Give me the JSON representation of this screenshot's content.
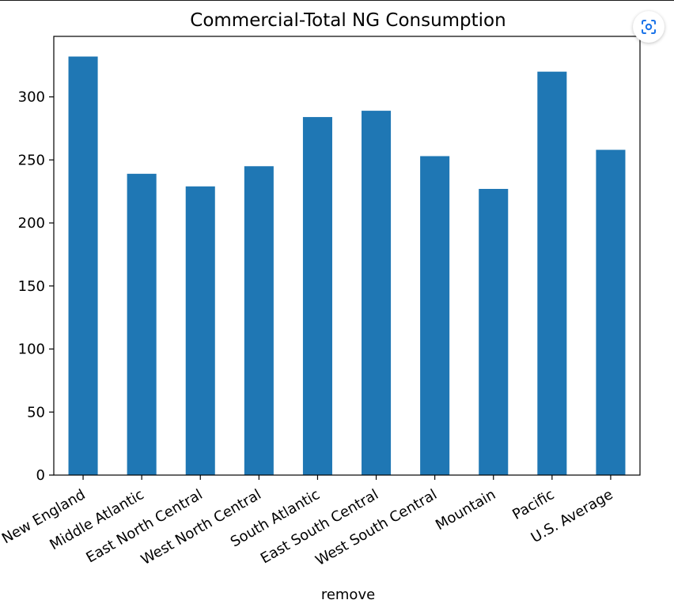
{
  "chart_data": {
    "type": "bar",
    "title": "Commercial-Total NG Consumption",
    "xlabel": "remove",
    "ylabel": "",
    "categories": [
      "New England",
      "Middle Atlantic",
      "East North Central",
      "West North Central",
      "South Atlantic",
      "East South Central",
      "West South Central",
      "Mountain",
      "Pacific",
      "U.S. Average"
    ],
    "values": [
      332,
      239,
      229,
      245,
      284,
      289,
      253,
      227,
      320,
      258
    ],
    "ylim": [
      0,
      348
    ],
    "yticks": [
      0,
      50,
      100,
      150,
      200,
      250,
      300
    ],
    "ytick_labels": [
      "0",
      "50",
      "100",
      "150",
      "200",
      "250",
      "300"
    ],
    "bar_color": "#1f77b4",
    "grid": false,
    "legend": "none"
  },
  "ui": {
    "scan_icon": "lens-scan-icon"
  }
}
